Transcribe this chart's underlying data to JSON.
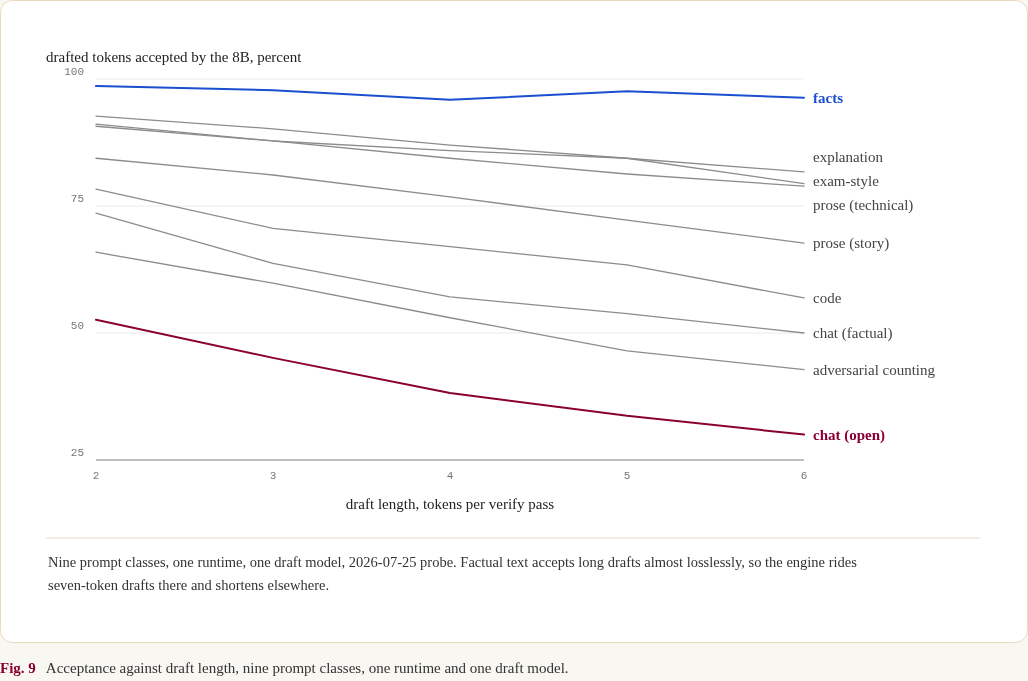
{
  "chart_data": {
    "type": "line",
    "title": "Acceptance against draft length, nine prompt classes, one runtime and one draft model.",
    "ylabel": "drafted tokens accepted by the 8B, percent",
    "xlabel": "draft length, tokens per verify pass",
    "annotations": [
      "Nine prompt classes, one runtime, one draft model, 2026-07-25 probe. Factual text accepts long drafts almost losslessly, so the engine rides seven-token drafts there and shortens elsewhere.",
      "Fig. 9"
    ],
    "x": [
      2,
      3,
      4,
      5,
      6
    ],
    "xlim": [
      2,
      6
    ],
    "xticks": [
      2,
      3,
      4,
      5,
      6
    ],
    "ylim": [
      25,
      100
    ],
    "yticks": [
      25,
      50,
      75,
      100
    ],
    "grid": "y",
    "legend": false,
    "line_style": "solid",
    "marker": "none",
    "series": [
      {
        "name": "facts",
        "color": "#1a4fd0",
        "values": [
          98.6,
          97.8,
          95.9,
          97.6,
          96.3
        ]
      },
      {
        "name": "explanation",
        "color": "#8c8c8c",
        "values": [
          92.7,
          90.2,
          87.0,
          84.4,
          81.7
        ]
      },
      {
        "name": "exam-style",
        "color": "#8c8c8c",
        "values": [
          91.1,
          87.8,
          85.9,
          84.4,
          79.4
        ]
      },
      {
        "name": "prose (technical)",
        "color": "#8c8c8c",
        "values": [
          90.7,
          87.8,
          84.4,
          81.3,
          78.9
        ]
      },
      {
        "name": "prose (story)",
        "color": "#8c8c8c",
        "values": [
          84.4,
          81.1,
          76.8,
          72.2,
          67.7
        ]
      },
      {
        "name": "code",
        "color": "#8c8c8c",
        "values": [
          78.3,
          70.6,
          67.0,
          63.4,
          56.9
        ]
      },
      {
        "name": "chat (factual)",
        "color": "#8c8c8c",
        "values": [
          73.6,
          63.7,
          57.1,
          53.8,
          50.0
        ]
      },
      {
        "name": "adversarial counting",
        "color": "#8c8c8c",
        "values": [
          65.9,
          59.8,
          53.0,
          46.5,
          42.8
        ]
      },
      {
        "name": "chat (open)",
        "color": "#8a0033",
        "values": [
          52.6,
          45.1,
          38.2,
          33.7,
          30.0
        ]
      }
    ]
  }
}
